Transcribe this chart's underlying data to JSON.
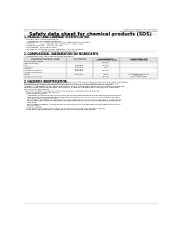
{
  "bg_color": "#ffffff",
  "header_top_left": "Product Name: Lithium Ion Battery Cell",
  "header_top_right": "Substance number: SDS-LIB-03010\nEstablishment / Revision: Dec.1.2010",
  "title": "Safety data sheet for chemical products (SDS)",
  "section1_title": "1. PRODUCT AND COMPANY IDENTIFICATION",
  "section1_lines": [
    "  • Product name: Lithium Ion Battery Cell",
    "  • Product code: Cylindrical-type cell",
    "       (UR18650A, UR18650B, UR18650A)",
    "  • Company name:    Sanyo Electric Co., Ltd., Mobile Energy Company",
    "  • Address:          2001  Kamikosaka, Sumoto-City, Hyogo, Japan",
    "  • Telephone number:   +81-799-26-4111",
    "  • Fax number:  +81-799-26-4120",
    "  • Emergency telephone number (Weekday) +81-799-26-3562",
    "                               (Night and holiday) +81-799-26-4101"
  ],
  "section2_title": "2. COMPOSITION / INFORMATION ON INGREDIENTS",
  "section2_intro": "  • Substance or preparation: Preparation",
  "section2_sub": "  • Information about the chemical nature of product:",
  "table_col0_header": "Component chemical name",
  "table_headers_rest": [
    "CAS number",
    "Concentration /\nConcentration range",
    "Classification and\nhazard labeling"
  ],
  "table_rows": [
    [
      "Lithium cobalt oxide\n(LiMn-CoO2(O4))",
      "-",
      "30-50%",
      ""
    ],
    [
      "Iron",
      "7439-89-6",
      "10-30%",
      ""
    ],
    [
      "Aluminum",
      "7429-90-5",
      "2-5%",
      ""
    ],
    [
      "Graphite\n(kinds of graphite-1)\n(kinds of graphite-1)",
      "7782-42-5\n7782-42-5",
      "10-20%",
      ""
    ],
    [
      "Copper",
      "7440-50-8",
      "5-15%",
      "Sensitization of the skin\ngroup No.2"
    ],
    [
      "Organic electrolyte",
      "-",
      "10-20%",
      "Inflammable liquid"
    ]
  ],
  "section3_title": "3. HAZARDS IDENTIFICATION",
  "section3_lines": [
    "For the battery cell, chemical substances are stored in a hermetically sealed metal case, designed to withstand",
    "temperatures and pressures generated during normal use. As a result, during normal use, there is no",
    "physical danger of ignition or explosion and there is no danger of hazardous materials leakage.",
    "  However, if exposed to a fire, added mechanical shocks, decomposed, when electric current circulates too,",
    "the gas release cannot be operated. The battery cell case will be breached at the extreme. Hazardous",
    "materials may be released.",
    "  Moreover, if heated strongly by the surrounding fire, some gas may be emitted."
  ],
  "section3_sub1": "  • Most important hazard and effects:",
  "section3_sub1_lines": [
    "    Human health effects:",
    "      Inhalation: The release of the electrolyte has an anesthesia action and stimulates a respiratory tract.",
    "      Skin contact: The release of the electrolyte stimulates a skin. The electrolyte skin contact causes a",
    "      sore and stimulation on the skin.",
    "      Eye contact: The release of the electrolyte stimulates eyes. The electrolyte eye contact causes a sore",
    "      and stimulation on the eye. Especially, a substance that causes a strong inflammation of the eye is",
    "      contained.",
    "      Environmental effects: Since a battery cell remains in the environment, do not throw out it into the",
    "      environment."
  ],
  "section3_sub2": "  • Specific hazards:",
  "section3_sub2_lines": [
    "    If the electrolyte contacts with water, it will generate detrimental hydrogen fluoride.",
    "    Since the used electrolyte is inflammable liquid, do not bring close to fire."
  ],
  "header_fs": 1.6,
  "title_fs": 3.8,
  "section_title_fs": 2.2,
  "body_fs": 1.55,
  "table_header_fs": 1.5,
  "table_body_fs": 1.45
}
